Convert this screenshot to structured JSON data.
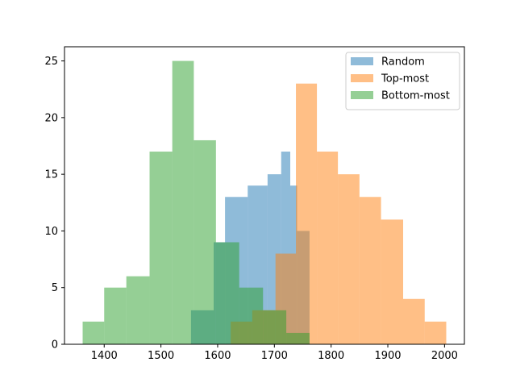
{
  "chart_data": {
    "type": "histogram",
    "title": "",
    "xlabel": "",
    "ylabel": "",
    "xlim": [
      1330,
      2035
    ],
    "ylim": [
      0,
      26.25
    ],
    "xticks": [
      1400,
      1500,
      1600,
      1700,
      1800,
      1900,
      2000
    ],
    "yticks": [
      0,
      5,
      10,
      15,
      20,
      25
    ],
    "grid": false,
    "legend": {
      "position": "top-right"
    },
    "series": [
      {
        "name": "Random",
        "color": "#1f77b4",
        "alpha": 0.5,
        "bins": [
          {
            "x0": 1553,
            "x1": 1573,
            "count": 3
          },
          {
            "x0": 1573,
            "x1": 1593,
            "count": 3
          },
          {
            "x0": 1593,
            "x1": 1613,
            "count": 9
          },
          {
            "x0": 1613,
            "x1": 1653,
            "count": 13
          },
          {
            "x0": 1653,
            "x1": 1688,
            "count": 14
          },
          {
            "x0": 1688,
            "x1": 1712,
            "count": 15
          },
          {
            "x0": 1712,
            "x1": 1728,
            "count": 17
          },
          {
            "x0": 1728,
            "x1": 1740,
            "count": 14
          },
          {
            "x0": 1740,
            "x1": 1762,
            "count": 10
          }
        ]
      },
      {
        "name": "Top-most",
        "color": "#ff7f0e",
        "alpha": 0.5,
        "bins": [
          {
            "x0": 1623,
            "x1": 1661,
            "count": 2
          },
          {
            "x0": 1661,
            "x1": 1702,
            "count": 3
          },
          {
            "x0": 1702,
            "x1": 1738,
            "count": 8
          },
          {
            "x0": 1738,
            "x1": 1775,
            "count": 23
          },
          {
            "x0": 1775,
            "x1": 1812,
            "count": 17
          },
          {
            "x0": 1812,
            "x1": 1850,
            "count": 15
          },
          {
            "x0": 1850,
            "x1": 1888,
            "count": 13
          },
          {
            "x0": 1888,
            "x1": 1927,
            "count": 11
          },
          {
            "x0": 1927,
            "x1": 1965,
            "count": 4
          },
          {
            "x0": 1965,
            "x1": 2003,
            "count": 2
          }
        ]
      },
      {
        "name": "Bottom-most",
        "color": "#2ca02c",
        "alpha": 0.5,
        "bins": [
          {
            "x0": 1362,
            "x1": 1400,
            "count": 2
          },
          {
            "x0": 1400,
            "x1": 1439,
            "count": 5
          },
          {
            "x0": 1439,
            "x1": 1480,
            "count": 6
          },
          {
            "x0": 1480,
            "x1": 1520,
            "count": 17
          },
          {
            "x0": 1520,
            "x1": 1558,
            "count": 25
          },
          {
            "x0": 1558,
            "x1": 1597,
            "count": 18
          },
          {
            "x0": 1597,
            "x1": 1638,
            "count": 9
          },
          {
            "x0": 1638,
            "x1": 1680,
            "count": 5
          },
          {
            "x0": 1680,
            "x1": 1721,
            "count": 3
          },
          {
            "x0": 1721,
            "x1": 1762,
            "count": 1
          }
        ]
      }
    ]
  }
}
